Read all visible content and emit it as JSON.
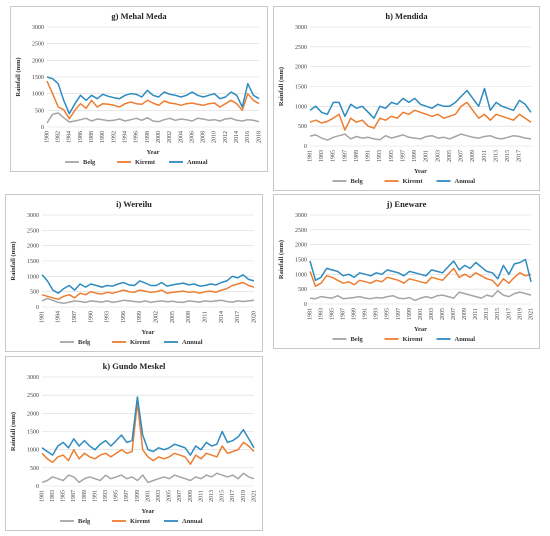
{
  "colors": {
    "Belg": "#a5a5a5",
    "Kiremt": "#ed7d31",
    "Annual": "#2e8bc0"
  },
  "chart_data": [
    {
      "type": "line",
      "title": "g) Mehal Meda",
      "xlabel": "Year",
      "ylabel": "Rainfall (mm)",
      "ylim": [
        0,
        3000
      ],
      "yticks": [
        0,
        500,
        1000,
        1500,
        2000,
        2500,
        3000
      ],
      "x": [
        1980,
        1981,
        1982,
        1983,
        1984,
        1985,
        1986,
        1987,
        1988,
        1989,
        1990,
        1991,
        1992,
        1993,
        1994,
        1995,
        1996,
        1997,
        1998,
        1999,
        2000,
        2001,
        2002,
        2003,
        2004,
        2005,
        2006,
        2007,
        2008,
        2009,
        2010,
        2011,
        2012,
        2013,
        2014,
        2015,
        2016,
        2017,
        2018
      ],
      "xticks": [
        1980,
        1982,
        1984,
        1986,
        1988,
        1990,
        1992,
        1994,
        1996,
        1998,
        2000,
        2002,
        2004,
        2006,
        2008,
        2010,
        2012,
        2014,
        2016,
        2018
      ],
      "legend": "bottom",
      "grid": true,
      "series": [
        {
          "name": "Belg",
          "values": [
            120,
            380,
            420,
            280,
            150,
            180,
            220,
            260,
            180,
            240,
            220,
            190,
            200,
            240,
            180,
            220,
            260,
            200,
            280,
            180,
            160,
            220,
            260,
            200,
            240,
            220,
            180,
            260,
            240,
            200,
            220,
            180,
            240,
            260,
            200,
            180,
            220,
            200,
            160
          ]
        },
        {
          "name": "Kiremt",
          "values": [
            1380,
            1000,
            600,
            520,
            250,
            500,
            700,
            560,
            800,
            600,
            700,
            680,
            650,
            600,
            700,
            750,
            700,
            680,
            800,
            720,
            650,
            780,
            720,
            700,
            650,
            700,
            720,
            680,
            650,
            700,
            720,
            600,
            700,
            800,
            700,
            500,
            1000,
            800,
            700
          ]
        },
        {
          "name": "Annual",
          "values": [
            1500,
            1450,
            1300,
            800,
            400,
            700,
            950,
            800,
            950,
            850,
            980,
            920,
            880,
            850,
            950,
            1000,
            980,
            900,
            1100,
            950,
            900,
            1050,
            980,
            950,
            900,
            950,
            1050,
            950,
            900,
            950,
            1000,
            850,
            900,
            1050,
            950,
            600,
            1300,
            950,
            850
          ]
        }
      ]
    },
    {
      "type": "line",
      "title": "h) Mendida",
      "xlabel": "Year",
      "ylabel": "Rainfall (mm)",
      "ylim": [
        0,
        3000
      ],
      "yticks": [
        0,
        500,
        1000,
        1500,
        2000,
        2500,
        3000
      ],
      "x": [
        1981,
        1982,
        1983,
        1984,
        1985,
        1986,
        1987,
        1988,
        1989,
        1990,
        1991,
        1992,
        1993,
        1994,
        1995,
        1996,
        1997,
        1998,
        1999,
        2000,
        2001,
        2002,
        2003,
        2004,
        2005,
        2006,
        2007,
        2008,
        2009,
        2010,
        2011,
        2012,
        2013,
        2014,
        2015,
        2016,
        2017,
        2018,
        2019
      ],
      "xticks": [
        1981,
        1983,
        1985,
        1987,
        1989,
        1991,
        1993,
        1995,
        1997,
        1999,
        2001,
        2003,
        2005,
        2007,
        2009,
        2011,
        2013,
        2015,
        2017
      ],
      "legend": "bottom",
      "grid": true,
      "series": [
        {
          "name": "Belg",
          "values": [
            250,
            280,
            200,
            150,
            220,
            260,
            300,
            180,
            240,
            200,
            220,
            180,
            160,
            260,
            200,
            240,
            280,
            220,
            200,
            180,
            240,
            260,
            200,
            220,
            180,
            240,
            300,
            260,
            220,
            200,
            240,
            260,
            200,
            180,
            220,
            260,
            240,
            200,
            180
          ]
        },
        {
          "name": "Kiremt",
          "values": [
            600,
            650,
            580,
            620,
            700,
            800,
            400,
            700,
            600,
            650,
            500,
            450,
            700,
            650,
            750,
            700,
            850,
            800,
            900,
            850,
            800,
            750,
            800,
            700,
            750,
            800,
            1000,
            1100,
            900,
            700,
            800,
            650,
            800,
            750,
            700,
            650,
            800,
            700,
            600
          ]
        },
        {
          "name": "Annual",
          "values": [
            900,
            1000,
            850,
            800,
            1100,
            1100,
            750,
            1050,
            950,
            1000,
            850,
            700,
            1000,
            950,
            1100,
            1050,
            1200,
            1100,
            1200,
            1050,
            1000,
            950,
            1050,
            1000,
            1000,
            1100,
            1250,
            1400,
            1200,
            1000,
            1450,
            900,
            1100,
            1000,
            950,
            900,
            1150,
            1050,
            850
          ]
        }
      ]
    },
    {
      "type": "line",
      "title": "i) Wereilu",
      "xlabel": "Year",
      "ylabel": "Rainfall (mm)",
      "ylim": [
        0,
        3000
      ],
      "yticks": [
        0,
        500,
        1000,
        1500,
        2000,
        2500,
        3000
      ],
      "x": [
        1981,
        1982,
        1983,
        1984,
        1985,
        1986,
        1987,
        1988,
        1989,
        1990,
        1991,
        1992,
        1993,
        1994,
        1995,
        1996,
        1997,
        1998,
        1999,
        2000,
        2001,
        2002,
        2003,
        2004,
        2005,
        2006,
        2007,
        2008,
        2009,
        2010,
        2011,
        2012,
        2013,
        2014,
        2015,
        2016,
        2017,
        2018,
        2019,
        2020
      ],
      "xticks": [
        1981,
        1984,
        1987,
        1990,
        1993,
        1996,
        1999,
        2002,
        2005,
        2008,
        2011,
        2014,
        2017,
        2020
      ],
      "legend": "bottom",
      "grid": true,
      "series": [
        {
          "name": "Belg",
          "values": [
            200,
            280,
            220,
            150,
            120,
            160,
            200,
            180,
            150,
            200,
            180,
            160,
            200,
            150,
            180,
            220,
            200,
            180,
            160,
            200,
            150,
            180,
            200,
            170,
            190,
            160,
            150,
            200,
            180,
            160,
            200,
            180,
            200,
            220,
            180,
            160,
            200,
            180,
            200,
            220
          ]
        },
        {
          "name": "Kiremt",
          "values": [
            400,
            350,
            300,
            250,
            350,
            400,
            300,
            450,
            400,
            500,
            450,
            420,
            480,
            450,
            500,
            550,
            500,
            480,
            550,
            520,
            480,
            500,
            550,
            450,
            480,
            500,
            520,
            480,
            500,
            450,
            500,
            520,
            480,
            550,
            600,
            700,
            750,
            800,
            700,
            650
          ]
        },
        {
          "name": "Annual",
          "values": [
            1050,
            850,
            550,
            450,
            600,
            700,
            550,
            750,
            650,
            750,
            700,
            650,
            700,
            680,
            750,
            800,
            720,
            700,
            850,
            780,
            700,
            700,
            800,
            680,
            720,
            750,
            780,
            720,
            750,
            680,
            700,
            750,
            720,
            800,
            850,
            1000,
            950,
            1050,
            900,
            850
          ]
        }
      ]
    },
    {
      "type": "line",
      "title": "j) Eneware",
      "xlabel": "Year",
      "ylabel": "Rainfall (mm)",
      "ylim": [
        0,
        3000
      ],
      "yticks": [
        0,
        500,
        1000,
        1500,
        2000,
        2500,
        3000
      ],
      "x": [
        1981,
        1982,
        1983,
        1984,
        1985,
        1986,
        1987,
        1988,
        1989,
        1990,
        1991,
        1992,
        1993,
        1994,
        1995,
        1996,
        1997,
        1998,
        1999,
        2000,
        2001,
        2002,
        2003,
        2004,
        2005,
        2006,
        2007,
        2008,
        2009,
        2010,
        2011,
        2012,
        2013,
        2014,
        2015,
        2016,
        2017,
        2018,
        2019,
        2020,
        2021
      ],
      "xticks": [
        1981,
        1983,
        1985,
        1987,
        1989,
        1991,
        1993,
        1995,
        1997,
        1999,
        2001,
        2003,
        2005,
        2007,
        2009,
        2011,
        2013,
        2015,
        2017,
        2019,
        2021
      ],
      "legend": "bottom",
      "grid": true,
      "series": [
        {
          "name": "Belg",
          "values": [
            200,
            180,
            250,
            220,
            200,
            280,
            180,
            200,
            220,
            250,
            200,
            180,
            220,
            200,
            250,
            280,
            200,
            180,
            220,
            120,
            200,
            250,
            200,
            280,
            300,
            250,
            200,
            400,
            350,
            300,
            250,
            200,
            300,
            250,
            450,
            300,
            250,
            350,
            400,
            350,
            300
          ]
        },
        {
          "name": "Kiremt",
          "values": [
            1100,
            600,
            700,
            950,
            900,
            800,
            700,
            750,
            650,
            800,
            750,
            700,
            800,
            750,
            900,
            850,
            800,
            700,
            850,
            800,
            750,
            700,
            900,
            850,
            800,
            1000,
            1200,
            900,
            1000,
            900,
            1050,
            950,
            850,
            800,
            600,
            850,
            700,
            900,
            1050,
            950,
            1000
          ]
        },
        {
          "name": "Annual",
          "values": [
            1450,
            800,
            900,
            1200,
            1150,
            1100,
            950,
            1000,
            900,
            1050,
            1000,
            950,
            1050,
            1000,
            1150,
            1100,
            1050,
            950,
            1100,
            1050,
            1000,
            950,
            1150,
            1100,
            1050,
            1250,
            1450,
            1150,
            1300,
            1200,
            1400,
            1250,
            1100,
            1050,
            850,
            1300,
            1000,
            1350,
            1400,
            1500,
            750
          ]
        }
      ]
    },
    {
      "type": "line",
      "title": "k) Gundo Meskel",
      "xlabel": "Year",
      "ylabel": "Rainfall (mm)",
      "ylim": [
        0,
        3000
      ],
      "yticks": [
        0,
        500,
        1000,
        1500,
        2000,
        2500,
        3000
      ],
      "x": [
        1981,
        1982,
        1983,
        1984,
        1985,
        1986,
        1987,
        1988,
        1989,
        1990,
        1991,
        1992,
        1993,
        1994,
        1995,
        1996,
        1997,
        1998,
        1999,
        2000,
        2001,
        2002,
        2003,
        2004,
        2005,
        2006,
        2007,
        2008,
        2009,
        2010,
        2011,
        2012,
        2013,
        2014,
        2015,
        2016,
        2017,
        2018,
        2019,
        2020,
        2021
      ],
      "xticks": [
        1981,
        1983,
        1985,
        1987,
        1989,
        1991,
        1993,
        1995,
        1997,
        1999,
        2001,
        2003,
        2005,
        2007,
        2009,
        2011,
        2013,
        2015,
        2017,
        2019,
        2021
      ],
      "legend": "bottom",
      "grid": true,
      "series": [
        {
          "name": "Belg",
          "values": [
            100,
            150,
            250,
            200,
            150,
            300,
            250,
            100,
            200,
            250,
            200,
            150,
            300,
            200,
            250,
            300,
            200,
            250,
            150,
            300,
            100,
            150,
            200,
            250,
            200,
            300,
            250,
            200,
            150,
            250,
            200,
            300,
            250,
            350,
            300,
            250,
            300,
            200,
            350,
            250,
            200
          ]
        },
        {
          "name": "Kiremt",
          "values": [
            900,
            750,
            650,
            800,
            850,
            700,
            1000,
            750,
            900,
            800,
            750,
            850,
            900,
            800,
            900,
            1000,
            900,
            950,
            2300,
            1000,
            800,
            700,
            800,
            750,
            800,
            900,
            850,
            800,
            600,
            850,
            750,
            900,
            850,
            800,
            1100,
            900,
            950,
            1000,
            1200,
            1100,
            950
          ]
        },
        {
          "name": "Annual",
          "values": [
            1050,
            950,
            850,
            1100,
            1200,
            1050,
            1300,
            1100,
            1250,
            1100,
            1000,
            1150,
            1250,
            1100,
            1250,
            1400,
            1200,
            1250,
            2450,
            1400,
            1000,
            950,
            1050,
            1000,
            1050,
            1150,
            1100,
            1050,
            850,
            1100,
            1000,
            1200,
            1100,
            1150,
            1500,
            1200,
            1250,
            1350,
            1550,
            1300,
            1050
          ]
        }
      ]
    }
  ]
}
